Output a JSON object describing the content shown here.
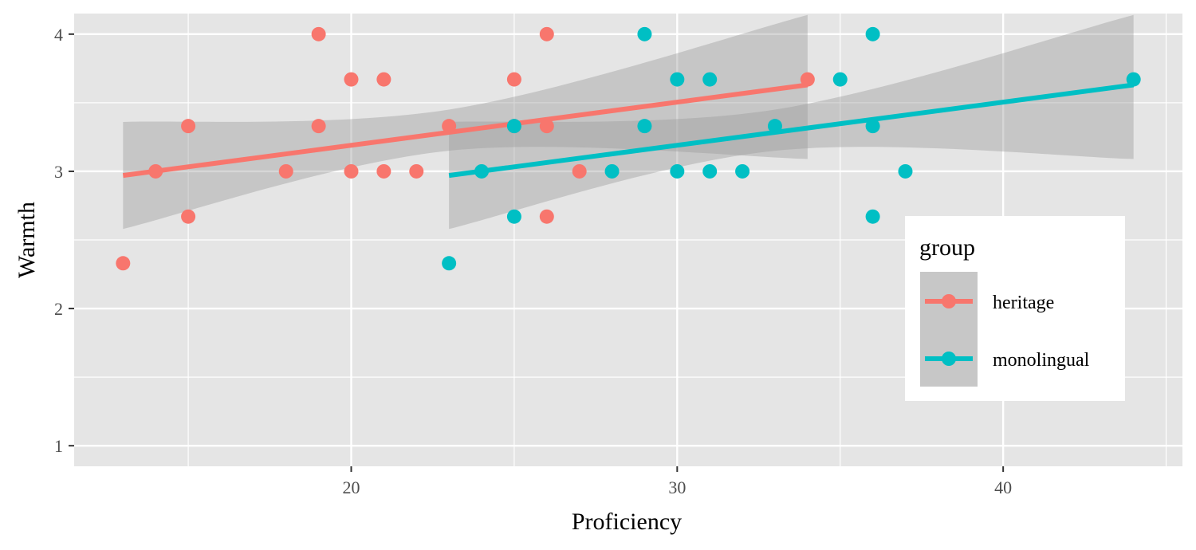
{
  "chart_data": {
    "type": "scatter",
    "title": "",
    "xlabel": "Proficiency",
    "ylabel": "Warmth",
    "xlim": [
      11.5,
      45.5
    ],
    "ylim": [
      0.85,
      4.15
    ],
    "x_ticks": [
      20,
      30,
      40
    ],
    "y_ticks": [
      1,
      2,
      3,
      4
    ],
    "grid": true,
    "legend": {
      "title": "group",
      "position": "bottom-right-inside"
    },
    "series": [
      {
        "name": "heritage",
        "color": "#F8766D",
        "points": [
          [
            13,
            2.33
          ],
          [
            14,
            3.0
          ],
          [
            15,
            3.33
          ],
          [
            15,
            2.67
          ],
          [
            18,
            3.0
          ],
          [
            19,
            4.0
          ],
          [
            19,
            3.33
          ],
          [
            20,
            3.67
          ],
          [
            20,
            3.0
          ],
          [
            21,
            3.67
          ],
          [
            21,
            3.0
          ],
          [
            22,
            3.0
          ],
          [
            23,
            3.33
          ],
          [
            25,
            3.67
          ],
          [
            25,
            3.33
          ],
          [
            26,
            4.0
          ],
          [
            26,
            3.33
          ],
          [
            26,
            2.67
          ],
          [
            27,
            3.0
          ],
          [
            34,
            3.67
          ]
        ],
        "fit": {
          "x_range": [
            13,
            34
          ],
          "y_range": [
            2.97,
            3.63
          ],
          "ci_lower": [
            [
              13,
              2.58
            ],
            [
              23,
              3.15
            ],
            [
              34,
              3.09
            ]
          ],
          "ci_upper": [
            [
              13,
              3.36
            ],
            [
              23,
              3.45
            ],
            [
              34,
              4.14
            ]
          ]
        }
      },
      {
        "name": "monolingual",
        "color": "#00BFC4",
        "points": [
          [
            23,
            2.33
          ],
          [
            24,
            3.0
          ],
          [
            25,
            3.33
          ],
          [
            25,
            2.67
          ],
          [
            28,
            3.0
          ],
          [
            29,
            4.0
          ],
          [
            29,
            3.33
          ],
          [
            30,
            3.67
          ],
          [
            30,
            3.0
          ],
          [
            31,
            3.67
          ],
          [
            31,
            3.0
          ],
          [
            32,
            3.0
          ],
          [
            33,
            3.33
          ],
          [
            35,
            3.67
          ],
          [
            36,
            4.0
          ],
          [
            36,
            3.33
          ],
          [
            36,
            2.67
          ],
          [
            37,
            3.0
          ],
          [
            44,
            3.67
          ]
        ],
        "fit": {
          "x_range": [
            23,
            44
          ],
          "y_range": [
            2.97,
            3.63
          ],
          "ci_lower": [
            [
              23,
              2.58
            ],
            [
              33,
              3.15
            ],
            [
              44,
              3.09
            ]
          ],
          "ci_upper": [
            [
              23,
              3.36
            ],
            [
              33,
              3.45
            ],
            [
              44,
              4.14
            ]
          ]
        }
      }
    ]
  }
}
